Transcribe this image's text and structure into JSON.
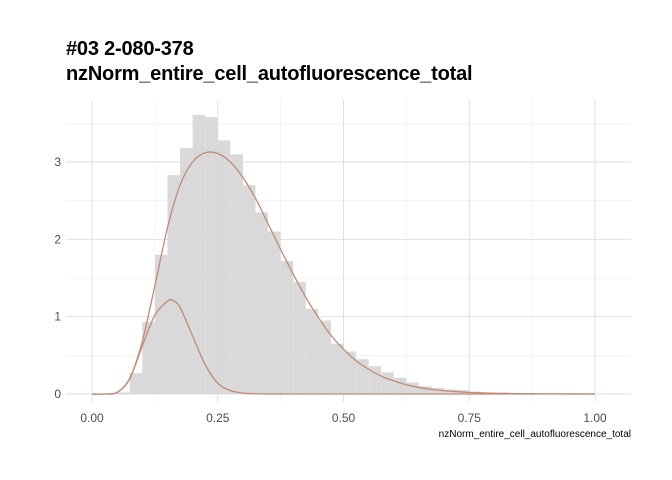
{
  "chart_data": {
    "type": "histogram",
    "title_line1": "#03 2-080-378",
    "title_line2": "nzNorm_entire_cell_autofluorescence_total",
    "xlabel": "nzNorm_entire_cell_autofluorescence_total",
    "ylabel": "",
    "xlim": [
      -0.05,
      1.07
    ],
    "ylim": [
      -0.1,
      3.5
    ],
    "x_ticks": [
      0.0,
      0.25,
      0.5,
      0.75,
      1.0
    ],
    "x_tick_labels": [
      "0.00",
      "0.25",
      "0.50",
      "0.75",
      "1.00"
    ],
    "y_ticks": [
      0,
      1,
      2,
      3
    ],
    "y_tick_labels": [
      "0",
      "1",
      "2",
      "3"
    ],
    "grid": true,
    "bin_width": 0.025,
    "bins": [
      {
        "x0": 0.0,
        "value": 0.0
      },
      {
        "x0": 0.025,
        "value": 0.0
      },
      {
        "x0": 0.05,
        "value": 0.02
      },
      {
        "x0": 0.075,
        "value": 0.27
      },
      {
        "x0": 0.1,
        "value": 0.93
      },
      {
        "x0": 0.125,
        "value": 1.8
      },
      {
        "x0": 0.15,
        "value": 2.83
      },
      {
        "x0": 0.175,
        "value": 3.18
      },
      {
        "x0": 0.2,
        "value": 3.61
      },
      {
        "x0": 0.225,
        "value": 3.58
      },
      {
        "x0": 0.25,
        "value": 3.28
      },
      {
        "x0": 0.275,
        "value": 3.1
      },
      {
        "x0": 0.3,
        "value": 2.7
      },
      {
        "x0": 0.325,
        "value": 2.35
      },
      {
        "x0": 0.35,
        "value": 2.1
      },
      {
        "x0": 0.375,
        "value": 1.72
      },
      {
        "x0": 0.4,
        "value": 1.45
      },
      {
        "x0": 0.425,
        "value": 1.1
      },
      {
        "x0": 0.45,
        "value": 0.95
      },
      {
        "x0": 0.475,
        "value": 0.65
      },
      {
        "x0": 0.5,
        "value": 0.55
      },
      {
        "x0": 0.525,
        "value": 0.45
      },
      {
        "x0": 0.55,
        "value": 0.36
      },
      {
        "x0": 0.575,
        "value": 0.28
      },
      {
        "x0": 0.6,
        "value": 0.21
      },
      {
        "x0": 0.625,
        "value": 0.15
      },
      {
        "x0": 0.65,
        "value": 0.1
      },
      {
        "x0": 0.675,
        "value": 0.08
      },
      {
        "x0": 0.7,
        "value": 0.06
      },
      {
        "x0": 0.725,
        "value": 0.05
      },
      {
        "x0": 0.75,
        "value": 0.03
      },
      {
        "x0": 0.775,
        "value": 0.02
      },
      {
        "x0": 0.8,
        "value": 0.015
      },
      {
        "x0": 0.825,
        "value": 0.01
      },
      {
        "x0": 0.85,
        "value": 0.008
      },
      {
        "x0": 0.875,
        "value": 0.005
      },
      {
        "x0": 0.9,
        "value": 0.004
      },
      {
        "x0": 0.925,
        "value": 0.003
      },
      {
        "x0": 0.95,
        "value": 0.002
      },
      {
        "x0": 0.975,
        "value": 0.001
      }
    ],
    "curves": [
      {
        "x": [
          0.0,
          0.025,
          0.05,
          0.075,
          0.1,
          0.125,
          0.15,
          0.175,
          0.2,
          0.225,
          0.25,
          0.275,
          0.3,
          0.325,
          0.35,
          0.375,
          0.4,
          0.425,
          0.45,
          0.475,
          0.5,
          0.525,
          0.55,
          0.575,
          0.6,
          0.625,
          0.65,
          0.675,
          0.7,
          0.725,
          0.75,
          0.775,
          0.8,
          0.825,
          0.85,
          0.875,
          0.9,
          0.925,
          0.95,
          0.975,
          1.0
        ],
        "values": [
          0.0,
          0.0,
          0.02,
          0.2,
          0.68,
          1.4,
          2.15,
          2.7,
          3.0,
          3.12,
          3.11,
          3.0,
          2.8,
          2.53,
          2.2,
          1.87,
          1.55,
          1.25,
          0.99,
          0.76,
          0.58,
          0.43,
          0.32,
          0.23,
          0.17,
          0.12,
          0.085,
          0.06,
          0.042,
          0.03,
          0.021,
          0.014,
          0.01,
          0.007,
          0.005,
          0.003,
          0.002,
          0.0015,
          0.001,
          0.0005,
          0.0
        ]
      },
      {
        "x": [
          0.0,
          0.025,
          0.05,
          0.075,
          0.1,
          0.125,
          0.15,
          0.16,
          0.175,
          0.2,
          0.225,
          0.25,
          0.275,
          0.3,
          0.325,
          0.35,
          0.375,
          0.4,
          0.425,
          0.45,
          0.5,
          0.6,
          0.75,
          1.0
        ],
        "values": [
          0.0,
          0.0,
          0.02,
          0.2,
          0.62,
          1.02,
          1.2,
          1.21,
          1.12,
          0.75,
          0.38,
          0.14,
          0.045,
          0.012,
          0.003,
          0.001,
          0.0,
          0.0,
          0.0,
          0.0,
          0.0,
          0.0,
          0.0,
          0.0
        ]
      }
    ],
    "colors": {
      "bar_fill": "#d9d9d9",
      "curve": "#c08a75",
      "grid_major": "#dedede",
      "grid_minor": "#eeeeee",
      "background": "#ffffff"
    }
  }
}
